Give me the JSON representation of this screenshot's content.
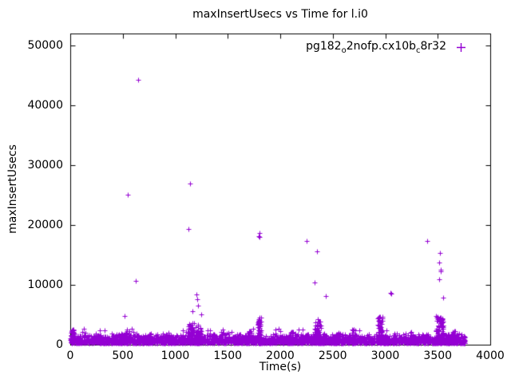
{
  "chart_data": {
    "type": "scatter",
    "title": "maxInsertUsecs vs Time for l.i0",
    "xlabel": "Time(s)",
    "ylabel": "maxInsertUsecs",
    "xlim": [
      0,
      4000
    ],
    "ylim": [
      0,
      52000
    ],
    "xticks": [
      0,
      500,
      1000,
      1500,
      2000,
      2500,
      3000,
      3500,
      4000
    ],
    "yticks": [
      0,
      10000,
      20000,
      30000,
      40000,
      50000
    ],
    "grid": false,
    "legend_position": "top-right",
    "series": [
      {
        "name": "pg182_o2nofp.cx10b_c8r32",
        "label_segments": [
          {
            "text": "pg182"
          },
          {
            "text": "o",
            "sub": true
          },
          {
            "text": "2nofp.cx10b"
          },
          {
            "text": "c",
            "sub": true
          },
          {
            "text": "8r32"
          }
        ],
        "color": "#9400d3",
        "marker": "plus",
        "seed": 1234,
        "baseline_band": {
          "x_min": 0,
          "x_max": 3760,
          "y_base": 250,
          "y_range": 1700,
          "power": 1.8,
          "count": 2800
        },
        "mid_scatter": {
          "x_min": 0,
          "x_max": 3760,
          "y_base": 1500,
          "y_range": 1200,
          "power": 2,
          "count": 70
        },
        "clusters": [
          {
            "x": 20,
            "spread": 30,
            "count": 60,
            "ymax": 2500
          },
          {
            "x": 250,
            "spread": 40,
            "count": 20,
            "ymax": 2000
          },
          {
            "x": 540,
            "spread": 40,
            "count": 35,
            "ymax": 2600
          },
          {
            "x": 760,
            "spread": 30,
            "count": 18,
            "ymax": 1900
          },
          {
            "x": 950,
            "spread": 40,
            "count": 20,
            "ymax": 2100
          },
          {
            "x": 1150,
            "spread": 60,
            "count": 70,
            "ymax": 3600
          },
          {
            "x": 1225,
            "spread": 60,
            "count": 60,
            "ymax": 3300
          },
          {
            "x": 1450,
            "spread": 40,
            "count": 22,
            "ymax": 2500
          },
          {
            "x": 1700,
            "spread": 60,
            "count": 30,
            "ymax": 2300
          },
          {
            "x": 1800,
            "spread": 30,
            "count": 80,
            "ymax": 4600
          },
          {
            "x": 2100,
            "spread": 40,
            "count": 25,
            "ymax": 2200
          },
          {
            "x": 2360,
            "spread": 60,
            "count": 90,
            "ymax": 4300
          },
          {
            "x": 2550,
            "spread": 40,
            "count": 20,
            "ymax": 2100
          },
          {
            "x": 2700,
            "spread": 40,
            "count": 22,
            "ymax": 2600
          },
          {
            "x": 2950,
            "spread": 50,
            "count": 90,
            "ymax": 4700
          },
          {
            "x": 3100,
            "spread": 40,
            "count": 20,
            "ymax": 2300
          },
          {
            "x": 3250,
            "spread": 40,
            "count": 18,
            "ymax": 2100
          },
          {
            "x": 3520,
            "spread": 70,
            "count": 110,
            "ymax": 4800
          },
          {
            "x": 3650,
            "spread": 40,
            "count": 25,
            "ymax": 2400
          }
        ],
        "outliers": [
          [
            15,
            2300
          ],
          [
            30,
            2500
          ],
          [
            520,
            4800
          ],
          [
            550,
            25100
          ],
          [
            620,
            10700
          ],
          [
            650,
            44300
          ],
          [
            1125,
            19400
          ],
          [
            1140,
            26900
          ],
          [
            1160,
            5600
          ],
          [
            1200,
            8400
          ],
          [
            1210,
            7600
          ],
          [
            1215,
            6600
          ],
          [
            1250,
            5100
          ],
          [
            1450,
            2600
          ],
          [
            1795,
            18200
          ],
          [
            1800,
            18700
          ],
          [
            1805,
            18000
          ],
          [
            1800,
            4600
          ],
          [
            1805,
            4200
          ],
          [
            2250,
            17400
          ],
          [
            2330,
            10400
          ],
          [
            2350,
            15600
          ],
          [
            2430,
            8100
          ],
          [
            2360,
            4300
          ],
          [
            2700,
            2600
          ],
          [
            2940,
            4100
          ],
          [
            2950,
            4700
          ],
          [
            2960,
            3800
          ],
          [
            3050,
            8700
          ],
          [
            3055,
            8600
          ],
          [
            3400,
            17300
          ],
          [
            3480,
            4800
          ],
          [
            3510,
            11000
          ],
          [
            3515,
            13700
          ],
          [
            3520,
            15400
          ],
          [
            3525,
            12500
          ],
          [
            3530,
            12300
          ],
          [
            3550,
            7900
          ],
          [
            3700,
            1900
          ],
          [
            3750,
            1200
          ]
        ]
      }
    ]
  }
}
